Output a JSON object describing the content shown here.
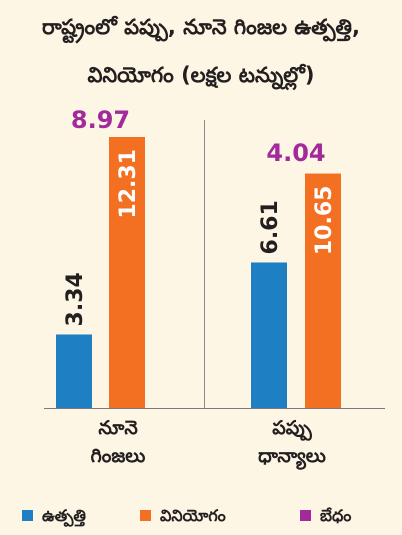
{
  "chart_data": {
    "type": "bar",
    "title": "రాష్ట్రంలో పప్పు, నూనె గింజల ఉత్పత్తి, వినియోగం (లక్షల టన్నుల్లో)",
    "title_line1": "రాష్ట్రంలో పప్పు, నూనె గింజల ఉత్పత్తి,",
    "title_line2": "వినియోగం (లక్షల టన్నుల్లో)",
    "categories": [
      "నూనె గింజలు",
      "పప్పు ధాన్యాలు"
    ],
    "category_lines": [
      [
        "నూనె",
        "గింజలు"
      ],
      [
        "పప్పు",
        "ధాన్యాలు"
      ]
    ],
    "series": [
      {
        "name": "ఉత్పత్తి",
        "values": [
          3.34,
          6.61
        ],
        "labels": [
          "3.34",
          "6.61"
        ],
        "color": "#1e7fc3"
      },
      {
        "name": "వినియోగం",
        "values": [
          12.31,
          10.65
        ],
        "labels": [
          "12.31",
          "10.65"
        ],
        "color": "#f36f21"
      }
    ],
    "difference": {
      "name": "బేధం",
      "values": [
        8.97,
        4.04
      ],
      "labels": [
        "8.97",
        "4.04"
      ],
      "color": "#a32a9b"
    },
    "ylim": [
      0,
      12.31
    ],
    "grid": false,
    "legend_position": "bottom"
  },
  "colors": {
    "background": "#fdf6e4",
    "text": "#231f20",
    "production": "#1e7fc3",
    "consumption": "#f36f21",
    "difference": "#a32a9b",
    "axis": "#7a7a7a"
  }
}
